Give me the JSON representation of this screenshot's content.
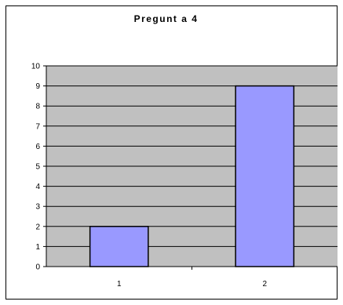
{
  "chart_data": {
    "type": "bar",
    "title": "Pregunt a 4",
    "categories": [
      "1",
      "2"
    ],
    "values": [
      2,
      9
    ],
    "ylim": [
      0,
      10
    ],
    "yticks": [
      "0",
      "1",
      "2",
      "3",
      "4",
      "5",
      "6",
      "7",
      "8",
      "9",
      "10"
    ],
    "grid": true,
    "legend": "none",
    "colors": {
      "bar_fill": "#9999FF",
      "bar_stroke": "#000000",
      "plot_background": "#C0C0C0",
      "gridline": "#000000"
    }
  }
}
